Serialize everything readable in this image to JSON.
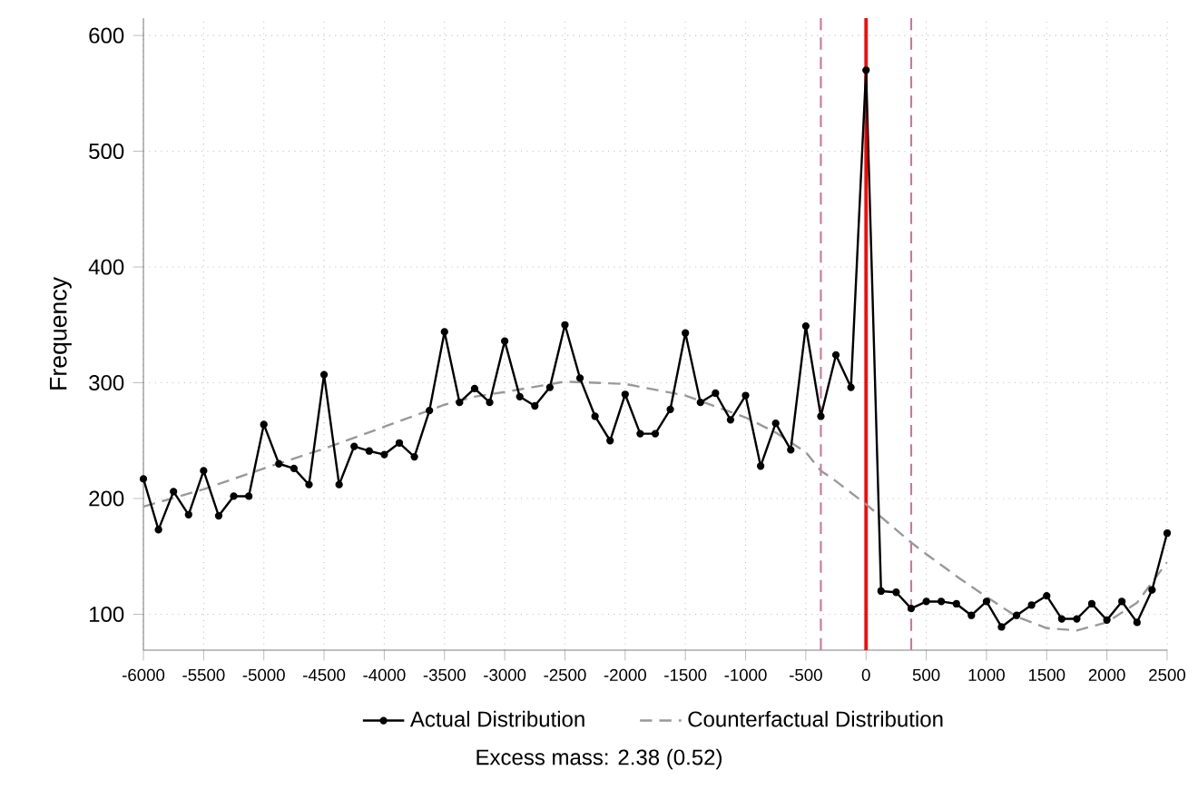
{
  "chart_data": {
    "type": "line",
    "ylabel": "Frequency",
    "x": [
      -6000,
      -5875,
      -5750,
      -5625,
      -5500,
      -5375,
      -5250,
      -5125,
      -5000,
      -4875,
      -4750,
      -4625,
      -4500,
      -4375,
      -4250,
      -4125,
      -4000,
      -3875,
      -3750,
      -3625,
      -3500,
      -3375,
      -3250,
      -3125,
      -3000,
      -2875,
      -2750,
      -2625,
      -2500,
      -2375,
      -2250,
      -2125,
      -2000,
      -1875,
      -1750,
      -1625,
      -1500,
      -1375,
      -1250,
      -1125,
      -1000,
      -875,
      -750,
      -625,
      -500,
      -375,
      -250,
      -125,
      0,
      125,
      250,
      375,
      500,
      625,
      750,
      875,
      1000,
      1125,
      1250,
      1375,
      1500,
      1625,
      1750,
      1875,
      2000,
      2125,
      2250,
      2375,
      2500
    ],
    "series": [
      {
        "name": "Actual Distribution",
        "color": "#000000",
        "marker": "circle",
        "line_style": "solid",
        "values": [
          217,
          173,
          206,
          186,
          224,
          185,
          202,
          202,
          264,
          230,
          226,
          212,
          307,
          212,
          245,
          241,
          238,
          248,
          236,
          276,
          344,
          283,
          295,
          283,
          336,
          288,
          280,
          296,
          350,
          304,
          271,
          250,
          290,
          256,
          256,
          277,
          343,
          283,
          291,
          268,
          289,
          228,
          265,
          242,
          349,
          271,
          324,
          296,
          570,
          120,
          119,
          105,
          111,
          111,
          109,
          99,
          111,
          89,
          99,
          108,
          116,
          96,
          96,
          109,
          95,
          111,
          93,
          121,
          170
        ]
      },
      {
        "name": "Counterfactual Distribution",
        "color": "#999999",
        "marker": "none",
        "line_style": "dashed",
        "x": [
          -6000,
          -5500,
          -5000,
          -4500,
          -4000,
          -3500,
          -3250,
          -3000,
          -2500,
          -2000,
          -1500,
          -1000,
          -750,
          -500,
          -375,
          -250,
          0,
          250,
          375,
          500,
          750,
          1000,
          1250,
          1500,
          1750,
          2000,
          2250,
          2500
        ],
        "values": [
          193,
          208,
          226,
          243,
          262,
          281,
          288,
          292,
          301,
          299,
          289,
          270,
          257,
          240,
          224,
          215,
          195,
          173,
          162,
          152,
          133,
          115,
          98,
          88,
          86,
          93,
          110,
          145
        ]
      }
    ],
    "xlim": [
      -6000,
      2500
    ],
    "ylim": [
      69,
      615
    ],
    "xticks": [
      -6000,
      -5500,
      -5000,
      -4500,
      -4000,
      -3500,
      -3000,
      -2500,
      -2000,
      -1500,
      -1000,
      -500,
      0,
      500,
      1000,
      1500,
      2000,
      2500
    ],
    "yticks": [
      100,
      200,
      300,
      400,
      500,
      600
    ],
    "grid": true,
    "legend": "bottom",
    "ref_lines": [
      {
        "axis": "x",
        "value": -375,
        "color": "#c9789f",
        "line_style": "dashed"
      },
      {
        "axis": "x",
        "value": 0,
        "color": "#ff0000",
        "line_style": "solid"
      },
      {
        "axis": "x",
        "value": 375,
        "color": "#c9789f",
        "line_style": "dashed"
      }
    ],
    "annotations": [
      "Excess mass: 2.38 (0.52)"
    ]
  }
}
